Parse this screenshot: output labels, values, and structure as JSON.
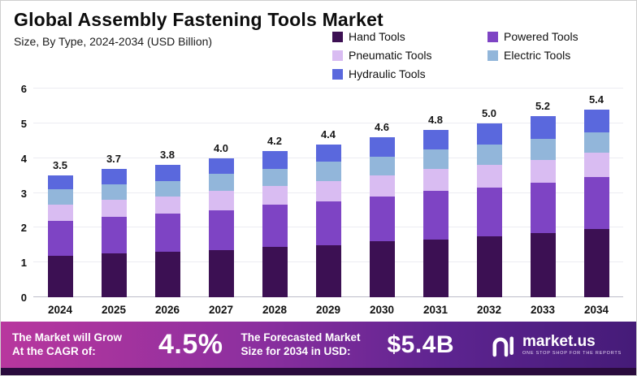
{
  "chart_data": {
    "type": "bar",
    "stacked": true,
    "title": "Global Assembly Fastening Tools Market",
    "subtitle": "Size, By Type, 2024-2034 (USD Billion)",
    "categories": [
      "2024",
      "2025",
      "2026",
      "2027",
      "2028",
      "2029",
      "2030",
      "2031",
      "2032",
      "2033",
      "2034"
    ],
    "series": [
      {
        "name": "Hand Tools",
        "color": "#3c1053",
        "values": [
          1.2,
          1.25,
          1.3,
          1.35,
          1.45,
          1.5,
          1.6,
          1.65,
          1.75,
          1.85,
          1.95
        ]
      },
      {
        "name": "Powered Tools",
        "color": "#7e44c4",
        "values": [
          1.0,
          1.05,
          1.1,
          1.15,
          1.2,
          1.25,
          1.3,
          1.4,
          1.4,
          1.45,
          1.5
        ]
      },
      {
        "name": "Pneumatic Tools",
        "color": "#d9bcf2",
        "values": [
          0.45,
          0.5,
          0.5,
          0.55,
          0.55,
          0.6,
          0.6,
          0.65,
          0.65,
          0.65,
          0.7
        ]
      },
      {
        "name": "Electric Tools",
        "color": "#92b6da",
        "values": [
          0.45,
          0.45,
          0.45,
          0.5,
          0.5,
          0.55,
          0.55,
          0.55,
          0.6,
          0.6,
          0.6
        ]
      },
      {
        "name": "Hydraulic Tools",
        "color": "#5a68dd",
        "values": [
          0.4,
          0.45,
          0.45,
          0.45,
          0.5,
          0.5,
          0.55,
          0.55,
          0.6,
          0.65,
          0.65
        ]
      }
    ],
    "totals": [
      "3.5",
      "3.7",
      "3.8",
      "4.0",
      "4.2",
      "4.4",
      "4.6",
      "4.8",
      "5.0",
      "5.2",
      "5.4"
    ],
    "ylim": [
      0,
      6
    ],
    "yticks": [
      0,
      1,
      2,
      3,
      4,
      5,
      6
    ],
    "xlabel": "",
    "ylabel": "",
    "legend_position": "top-right",
    "grid": true
  },
  "banner": {
    "cagr_label_line1": "The Market will Grow",
    "cagr_label_line2": "At the CAGR of:",
    "cagr_value": "4.5%",
    "forecast_label_line1": "The Forecasted Market",
    "forecast_label_line2": "Size for 2034 in USD:",
    "forecast_value": "$5.4B",
    "logo_name": "market.us",
    "logo_tagline": "ONE STOP SHOP FOR THE REPORTS"
  }
}
